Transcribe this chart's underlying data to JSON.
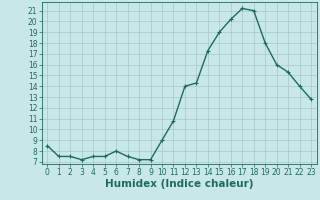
{
  "x": [
    0,
    1,
    2,
    3,
    4,
    5,
    6,
    7,
    8,
    9,
    10,
    11,
    12,
    13,
    14,
    15,
    16,
    17,
    18,
    19,
    20,
    21,
    22,
    23
  ],
  "y": [
    8.5,
    7.5,
    7.5,
    7.2,
    7.5,
    7.5,
    8.0,
    7.5,
    7.2,
    7.2,
    9.0,
    10.8,
    14.0,
    14.3,
    17.3,
    19.0,
    20.2,
    21.2,
    21.0,
    18.0,
    16.0,
    15.3,
    14.0,
    12.8
  ],
  "line_color": "#1e6b5a",
  "marker": "+",
  "marker_size": 3,
  "linewidth": 1.0,
  "bg_color": "#c8e8e8",
  "grid_color": "#a8c8c8",
  "xlabel": "Humidex (Indice chaleur)",
  "xlim": [
    -0.5,
    23.5
  ],
  "ylim": [
    6.8,
    21.8
  ],
  "yticks": [
    7,
    8,
    9,
    10,
    11,
    12,
    13,
    14,
    15,
    16,
    17,
    18,
    19,
    20,
    21
  ],
  "xticks": [
    0,
    1,
    2,
    3,
    4,
    5,
    6,
    7,
    8,
    9,
    10,
    11,
    12,
    13,
    14,
    15,
    16,
    17,
    18,
    19,
    20,
    21,
    22,
    23
  ],
  "tick_fontsize": 5.5,
  "xlabel_fontsize": 7.5
}
